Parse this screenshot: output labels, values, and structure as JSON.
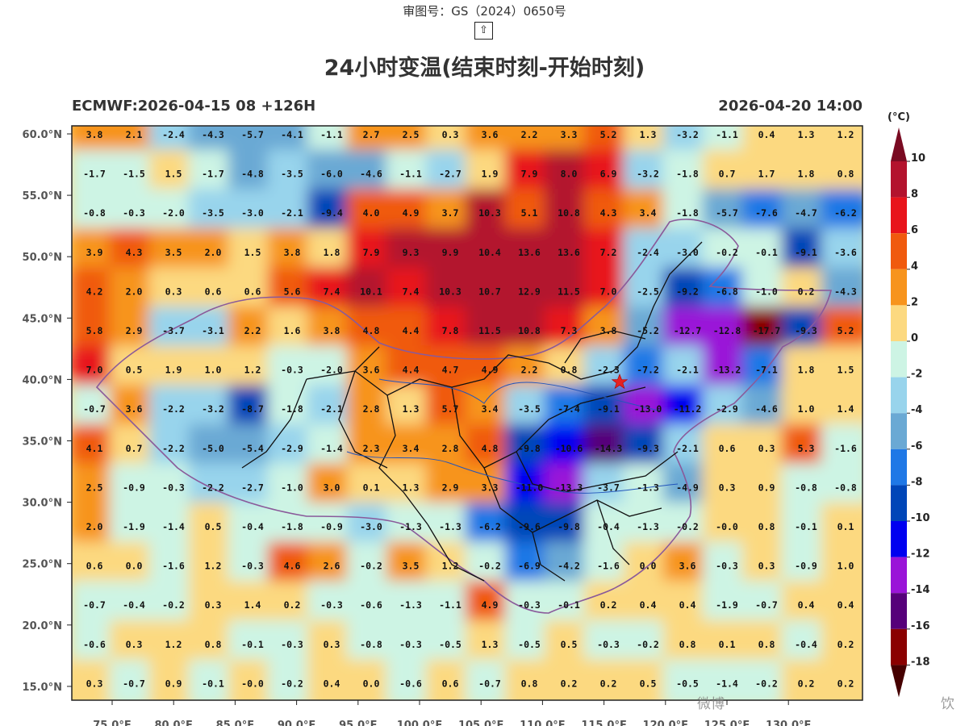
{
  "header": {
    "approval_number": "审图号：GS（2024）0650号",
    "up_icon": "⇧",
    "title": "24小时变温(结束时刻-开始时刻)",
    "model_run": "ECMWF:2026-04-15 08 +126H",
    "valid_time": "2026-04-20 14:00"
  },
  "colorbar": {
    "unit": "(°C)",
    "ticks": [
      "10",
      "8",
      "6",
      "4",
      "2",
      "0",
      "-2",
      "-4",
      "-6",
      "-8",
      "-10",
      "-12",
      "-14",
      "-16",
      "-18"
    ],
    "colors": [
      "#7a0b22",
      "#b3132d",
      "#e8141b",
      "#f05a0e",
      "#f7941d",
      "#fcd980",
      "#cdf4e4",
      "#98d4ec",
      "#6aa9d4",
      "#1f78e6",
      "#0046b8",
      "#0000f0",
      "#9a14d8",
      "#56007a",
      "#8a0000",
      "#460000"
    ]
  },
  "map": {
    "lat_labels": [
      "60.0°N",
      "55.0°N",
      "50.0°N",
      "45.0°N",
      "40.0°N",
      "35.0°N",
      "30.0°N",
      "25.0°N",
      "20.0°N",
      "15.0°N"
    ],
    "lon_labels": [
      "75.0°E",
      "80.0°E",
      "85.0°E",
      "90.0°E",
      "95.0°E",
      "100.0°E",
      "105.0°E",
      "110.0°E",
      "115.0°E",
      "120.0°E",
      "125.0°E",
      "130.0°E"
    ],
    "marker": "star-beijing",
    "value_grid": [
      [
        "3.8",
        "2.1",
        "-2.4",
        "-4.3",
        "-5.7",
        "-4.1",
        "-1.1",
        "2.7",
        "2.5",
        "0.3",
        "3.6",
        "2.2",
        "3.3",
        "5.2",
        "1.3",
        "-3.2",
        "-1.1",
        "0.4",
        "1.3",
        "1.2"
      ],
      [
        "-1.7",
        "-1.5",
        "1.5",
        "-1.7",
        "-4.8",
        "-3.5",
        "-6.0",
        "-4.6",
        "-1.1",
        "-2.7",
        "1.9",
        "7.9",
        "8.0",
        "6.9",
        "-3.2",
        "-1.8",
        "0.7",
        "1.7",
        "1.8",
        "0.8"
      ],
      [
        "-0.8",
        "-0.3",
        "-2.0",
        "-3.5",
        "-3.0",
        "-2.1",
        "-9.4",
        "4.0",
        "4.9",
        "3.7",
        "10.3",
        "5.1",
        "10.8",
        "4.3",
        "3.4",
        "-1.8",
        "-5.7",
        "-7.6",
        "-4.7",
        "-6.2"
      ],
      [
        "3.9",
        "4.3",
        "3.5",
        "2.0",
        "1.5",
        "3.8",
        "1.8",
        "7.9",
        "9.3",
        "9.9",
        "10.4",
        "13.6",
        "13.6",
        "7.2",
        "-2.4",
        "-3.0",
        "-0.2",
        "-0.1",
        "-9.1",
        "-3.6"
      ],
      [
        "4.2",
        "2.0",
        "0.3",
        "0.6",
        "0.6",
        "5.6",
        "7.4",
        "10.1",
        "7.4",
        "10.3",
        "10.7",
        "12.9",
        "11.5",
        "7.0",
        "-2.5",
        "-9.2",
        "-6.8",
        "-1.0",
        "0.2",
        "-4.3"
      ],
      [
        "5.8",
        "2.9",
        "-3.7",
        "-3.1",
        "2.2",
        "1.6",
        "3.8",
        "4.8",
        "4.4",
        "7.8",
        "11.5",
        "10.8",
        "7.3",
        "3.8",
        "-5.2",
        "-12.7",
        "-12.8",
        "-17.7",
        "-9.3",
        "5.2"
      ],
      [
        "7.0",
        "0.5",
        "1.9",
        "1.0",
        "1.2",
        "-0.3",
        "-2.0",
        "3.6",
        "4.4",
        "4.7",
        "4.9",
        "2.2",
        "0.8",
        "-2.3",
        "-7.2",
        "-2.1",
        "-13.2",
        "-7.1",
        "1.8",
        "1.5"
      ],
      [
        "-0.7",
        "3.6",
        "-2.2",
        "-3.2",
        "-8.7",
        "-1.8",
        "-2.1",
        "2.8",
        "1.3",
        "5.7",
        "3.4",
        "-3.5",
        "-7.4",
        "-9.1",
        "-13.0",
        "-11.2",
        "-2.9",
        "-4.6",
        "1.0",
        "1.4"
      ],
      [
        "4.1",
        "0.7",
        "-2.2",
        "-5.0",
        "-5.4",
        "-2.9",
        "-1.4",
        "2.3",
        "3.4",
        "2.8",
        "4.8",
        "-9.8",
        "-10.6",
        "-14.3",
        "-9.3",
        "-2.1",
        "0.6",
        "0.3",
        "5.3",
        "-1.6"
      ],
      [
        "2.5",
        "-0.9",
        "-0.3",
        "-2.2",
        "-2.7",
        "-1.0",
        "3.0",
        "0.1",
        "1.3",
        "2.9",
        "3.3",
        "-11.0",
        "-13.3",
        "-3.7",
        "-1.3",
        "-4.9",
        "0.3",
        "0.9",
        "-0.8",
        "-0.8"
      ],
      [
        "2.0",
        "-1.9",
        "-1.4",
        "0.5",
        "-0.4",
        "-1.8",
        "-0.9",
        "-3.0",
        "-1.3",
        "-1.3",
        "-6.2",
        "-9.6",
        "-9.8",
        "-0.4",
        "-1.3",
        "-0.2",
        "-0.0",
        "0.8",
        "-0.1",
        "0.1"
      ],
      [
        "0.6",
        "0.0",
        "-1.6",
        "1.2",
        "-0.3",
        "4.6",
        "2.6",
        "-0.2",
        "3.5",
        "1.2",
        "-0.2",
        "-6.9",
        "-4.2",
        "-1.6",
        "0.0",
        "3.6",
        "-0.3",
        "0.3",
        "-0.9",
        "1.0"
      ],
      [
        "-0.7",
        "-0.4",
        "-0.2",
        "0.3",
        "1.4",
        "0.2",
        "-0.3",
        "-0.6",
        "-1.3",
        "-1.1",
        "4.9",
        "-0.3",
        "-0.1",
        "0.2",
        "0.4",
        "0.4",
        "-1.9",
        "-0.7",
        "0.4",
        "0.4"
      ],
      [
        "-0.6",
        "0.3",
        "1.2",
        "0.8",
        "-0.1",
        "-0.3",
        "0.3",
        "-0.8",
        "-0.3",
        "-0.5",
        "1.3",
        "-0.5",
        "0.5",
        "-0.3",
        "-0.2",
        "0.8",
        "0.1",
        "0.8",
        "-0.4",
        "0.2"
      ],
      [
        "0.3",
        "-0.7",
        "0.9",
        "-0.1",
        "-0.0",
        "-0.2",
        "0.4",
        "0.0",
        "-0.6",
        "0.6",
        "-0.7",
        "0.8",
        "0.2",
        "0.2",
        "0.5",
        "-0.5",
        "-1.4",
        "-0.2",
        "0.2",
        "0.2"
      ]
    ]
  },
  "watermark": {
    "text": "微博",
    "tail": "饮"
  }
}
